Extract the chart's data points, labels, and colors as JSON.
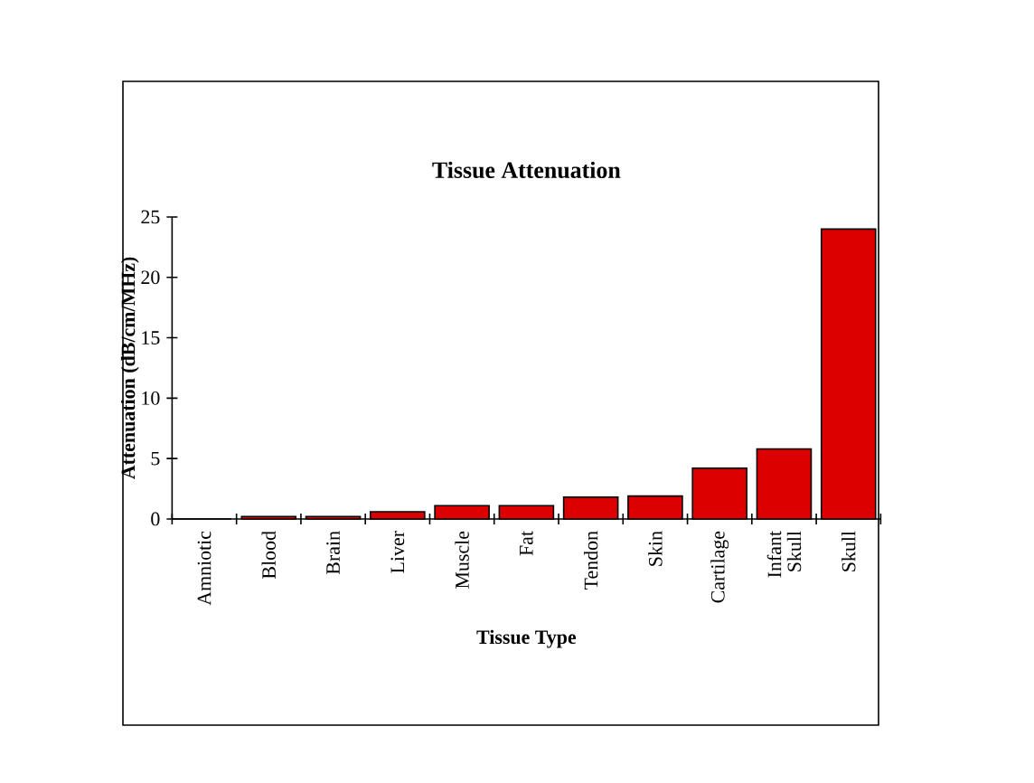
{
  "chart_data": {
    "type": "bar",
    "title": "Tissue Attenuation",
    "xlabel": "Tissue Type",
    "ylabel": "Attenuation (dB/cm/MHz)",
    "categories": [
      "Amniotic",
      "Blood",
      "Brain",
      "Liver",
      "Muscle",
      "Fat",
      "Tendon",
      "Skin",
      "Cartilage",
      "Infant Skull",
      "Skull"
    ],
    "values": [
      0,
      0.2,
      0.2,
      0.6,
      1.1,
      1.1,
      1.8,
      1.9,
      4.2,
      5.8,
      24
    ],
    "color": "#dd0000",
    "ylim": [
      0,
      25
    ],
    "yticks": [
      0,
      5,
      10,
      15,
      20,
      25
    ]
  }
}
